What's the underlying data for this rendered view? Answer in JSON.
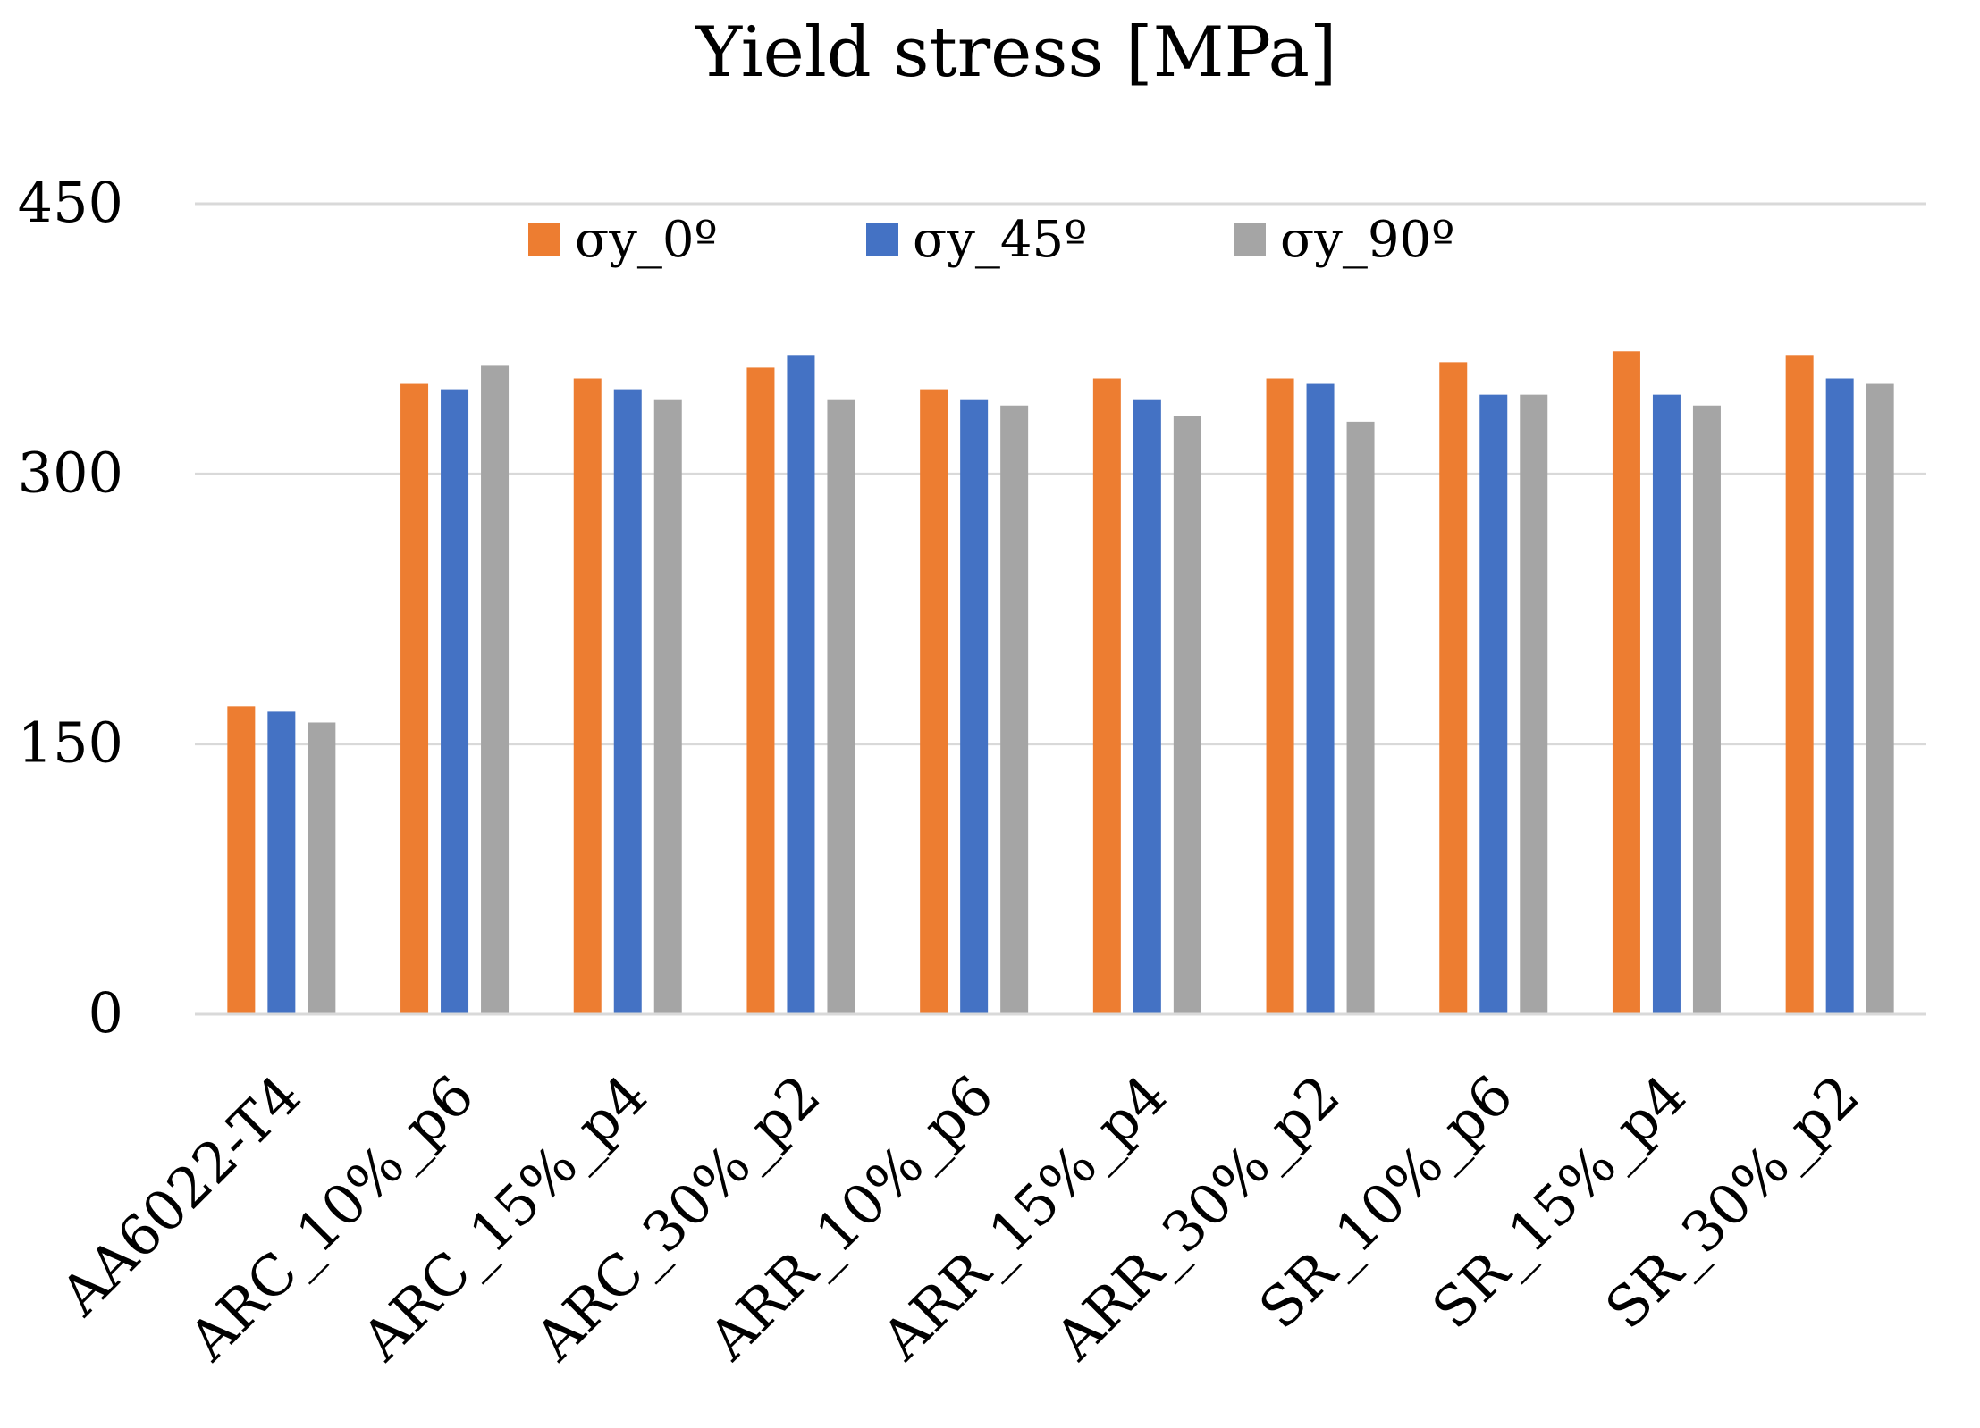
{
  "chart_data": {
    "type": "bar",
    "title": "Yield stress [MPa]",
    "xlabel": "",
    "ylabel": "",
    "ylim": [
      0,
      450
    ],
    "yticks": [
      0,
      150,
      300,
      450
    ],
    "grid": true,
    "legend_position": "top-center",
    "categories": [
      "AA6022-T4",
      "ARC_10%_p6",
      "ARC_15%_p4",
      "ARC_30%_p2",
      "ARR_10%_p6",
      "ARR_15%_p4",
      "ARR_30%_p2",
      "SR_10%_p6",
      "SR_15%_p4",
      "SR_30%_p2"
    ],
    "series": [
      {
        "name": "σy_0º",
        "color": "#ED7D31",
        "values": [
          171,
          350,
          353,
          359,
          347,
          353,
          353,
          362,
          368,
          366
        ]
      },
      {
        "name": "σy_45º",
        "color": "#4472C4",
        "values": [
          168,
          347,
          347,
          366,
          341,
          341,
          350,
          344,
          344,
          353
        ]
      },
      {
        "name": "σy_90º",
        "color": "#A5A5A5",
        "values": [
          162,
          360,
          341,
          341,
          338,
          332,
          329,
          344,
          338,
          350
        ]
      }
    ]
  }
}
